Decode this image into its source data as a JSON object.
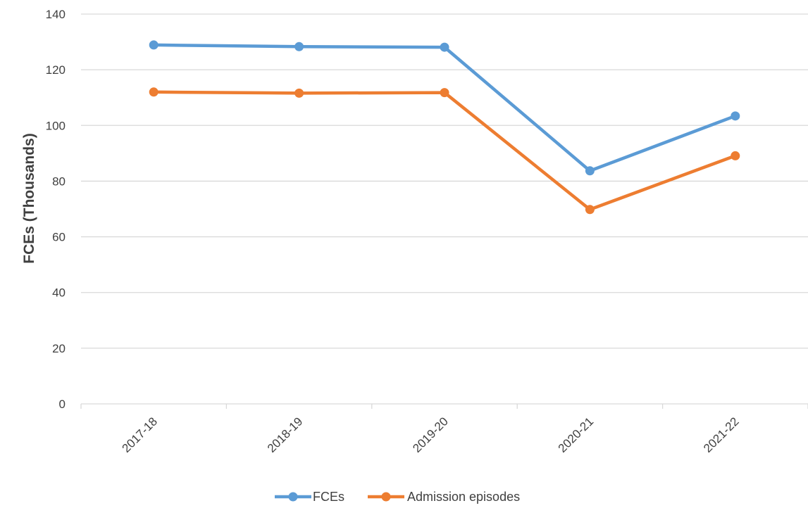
{
  "chart_data": {
    "type": "line",
    "title": "",
    "xlabel": "",
    "ylabel": "FCEs (Thousands)",
    "categories": [
      "2017-18",
      "2018-19",
      "2019-20",
      "2020-21",
      "2021-22"
    ],
    "ylim": [
      0,
      140
    ],
    "yticks": [
      0,
      20,
      40,
      60,
      80,
      100,
      120,
      140
    ],
    "grid": true,
    "legend_position": "bottom",
    "series": [
      {
        "name": "FCEs",
        "color": "#5B9BD5",
        "values": [
          128.9,
          128.3,
          128.1,
          83.7,
          103.4
        ]
      },
      {
        "name": "Admission episodes",
        "color": "#ED7D31",
        "values": [
          112.0,
          111.6,
          111.8,
          69.8,
          89.1
        ]
      }
    ]
  }
}
